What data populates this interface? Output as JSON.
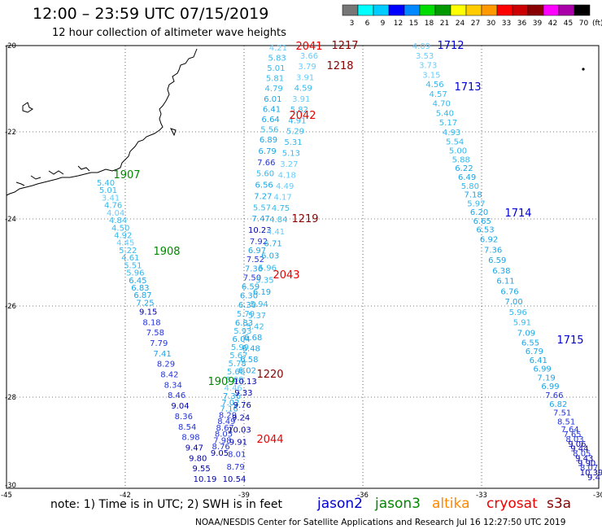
{
  "title": "12:00 – 23:59 UTC 07/15/2019",
  "subtitle": "12 hour collection of altimeter wave heights",
  "legend": {
    "unit_label": "(ft)",
    "ticks": [
      "3",
      "6",
      "9",
      "12",
      "15",
      "18",
      "21",
      "24",
      "27",
      "30",
      "33",
      "36",
      "39",
      "42",
      "45",
      "70"
    ],
    "colors": [
      "#777777",
      "#00ffff",
      "#00ccff",
      "#0000ff",
      "#0088ff",
      "#00dd00",
      "#009900",
      "#ffff00",
      "#ffcc00",
      "#ff9900",
      "#ff0000",
      "#cc0000",
      "#880000",
      "#ff00ff",
      "#aa00aa",
      "#000000"
    ]
  },
  "axes": {
    "lat_labels": [
      "-20",
      "-22",
      "-24",
      "-26",
      "-28",
      "-30"
    ],
    "lon_labels": [
      "-45",
      "-42",
      "-39",
      "-36",
      "-33",
      "-30"
    ]
  },
  "note": "note: 1) Time is in UTC; 2) SWH is in feet",
  "satellites": [
    {
      "name": "jason2",
      "color": "#0000cc"
    },
    {
      "name": "jason3",
      "color": "#008800"
    },
    {
      "name": "altika",
      "color": "#ff8800"
    },
    {
      "name": "cryosat",
      "color": "#ee0000"
    },
    {
      "name": "s3a",
      "color": "#880000"
    }
  ],
  "credits": "NOAA/NESDIS Center for Satellite Applications and Research     Jul 16 12:27:50 UTC 2019",
  "track_labels": [
    {
      "text": "1907",
      "color": "#008800"
    },
    {
      "text": "1908",
      "color": "#008800"
    },
    {
      "text": "1909",
      "color": "#008800"
    },
    {
      "text": "2041",
      "color": "#ee0000"
    },
    {
      "text": "2042",
      "color": "#ee0000"
    },
    {
      "text": "2043",
      "color": "#ee0000"
    },
    {
      "text": "2044",
      "color": "#ee0000"
    },
    {
      "text": "1217",
      "color": "#880000"
    },
    {
      "text": "1218",
      "color": "#880000"
    },
    {
      "text": "1219",
      "color": "#880000"
    },
    {
      "text": "1220",
      "color": "#880000"
    },
    {
      "text": "1712",
      "color": "#0000cc"
    },
    {
      "text": "1713",
      "color": "#0000cc"
    },
    {
      "text": "1714",
      "color": "#0000cc"
    },
    {
      "text": "1715",
      "color": "#0000cc"
    }
  ],
  "tracks": {
    "jason3_track": [
      "5.40",
      "5.01",
      "3.41",
      "4.76",
      "4.04",
      "4.84",
      "4.50",
      "4.92",
      "4.45",
      "5.22",
      "4.61",
      "5.51",
      "5.96",
      "6.45",
      "6.83",
      "6.87",
      "7.25",
      "9.15",
      "8.18",
      "7.58",
      "7.79",
      "7.41",
      "8.29",
      "8.42",
      "8.34",
      "8.46",
      "9.04",
      "8.36",
      "8.54",
      "8.98",
      "9.47",
      "9.80",
      "9.55",
      "10.19"
    ],
    "cryosat_track": [
      "4.21",
      "5.83",
      "5.01",
      "5.81",
      "4.79",
      "6.01",
      "6.41",
      "6.64",
      "5.56",
      "6.89",
      "6.79",
      "7.66",
      "5.60",
      "6.56",
      "7.27",
      "5.57",
      "7.47",
      "10.23",
      "7.92",
      "6.97",
      "7.52",
      "7.36",
      "7.50",
      "6.59",
      "6.30",
      "6.30",
      "5.79",
      "6.83",
      "5.93",
      "6.04",
      "5.99",
      "5.67",
      "5.78",
      "5.60",
      "5.08",
      "4.46",
      "7.36",
      "7.02",
      "7.16",
      "8.29",
      "8.49",
      "8.67",
      "8.05",
      "7.98",
      "8.76",
      "9.05"
    ],
    "s3a_track": [
      "3.66",
      "3.79",
      "3.91",
      "4.59",
      "3.91",
      "5.82",
      "4.91",
      "5.29",
      "5.31",
      "5.13",
      "3.27",
      "4.18",
      "4.49",
      "4.17",
      "4.75",
      "4.84",
      "4.41",
      "6.71",
      "6.03",
      "5.96",
      "5.35",
      "6.19",
      "5.94",
      "5.37",
      "5.42",
      "6.68",
      "6.48",
      "6.58",
      "6.02",
      "10.13",
      "9.33",
      "9.76",
      "9.24",
      "10.03",
      "9.91",
      "8.01",
      "8.79",
      "10.54"
    ],
    "jason2_track": [
      "4.09",
      "3.53",
      "3.73",
      "3.15",
      "4.56",
      "4.57",
      "4.70",
      "5.40",
      "5.17",
      "4.93",
      "5.54",
      "5.00",
      "5.88",
      "6.22",
      "6.49",
      "5.80",
      "7.18",
      "5.97",
      "6.20",
      "6.65",
      "6.53",
      "6.92",
      "7.36",
      "6.59",
      "6.38",
      "6.11",
      "6.76",
      "7.00",
      "5.96",
      "5.91",
      "7.09",
      "6.55",
      "6.79",
      "6.41",
      "6.99",
      "7.19",
      "6.99",
      "7.66",
      "6.82",
      "7.51",
      "8.51",
      "7.64",
      "7.65",
      "8.03",
      "9.06",
      "9.44",
      "8.05",
      "9.43",
      "9.90",
      "8.07",
      "10.39",
      "9.4"
    ]
  }
}
